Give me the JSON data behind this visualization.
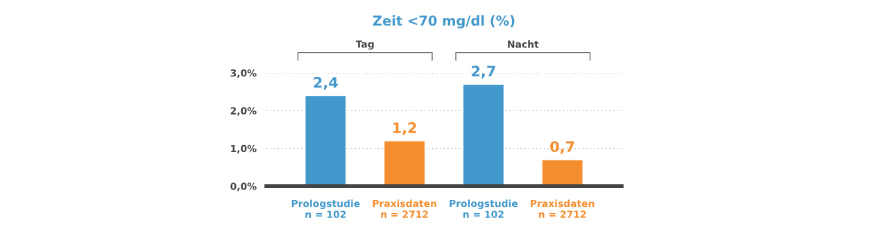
{
  "chart_data": {
    "type": "bar",
    "title": "Zeit <70 mg/dl (%)",
    "categories": [
      "Prologstudie\nn = 102",
      "Praxisdaten\nn = 2712",
      "Prologstudie\nn = 102",
      "Praxisdaten\nn = 2712"
    ],
    "values": [
      2.4,
      1.2,
      2.7,
      0.7
    ],
    "colors": [
      "#4398cc",
      "#f48e2f",
      "#4398cc",
      "#f48e2f"
    ],
    "value_labels": [
      "2,4",
      "1,2",
      "2,7",
      "0,7"
    ],
    "annotations": [
      "Tag",
      "Nacht"
    ],
    "ylim": [
      0,
      3
    ],
    "yticks": [
      {
        "value": 0,
        "label": "0,0%"
      },
      {
        "value": 1,
        "label": "1,0%"
      },
      {
        "value": 2,
        "label": "2,0%"
      },
      {
        "value": 3,
        "label": "3,0%"
      }
    ],
    "grid": "y",
    "legend": false
  }
}
